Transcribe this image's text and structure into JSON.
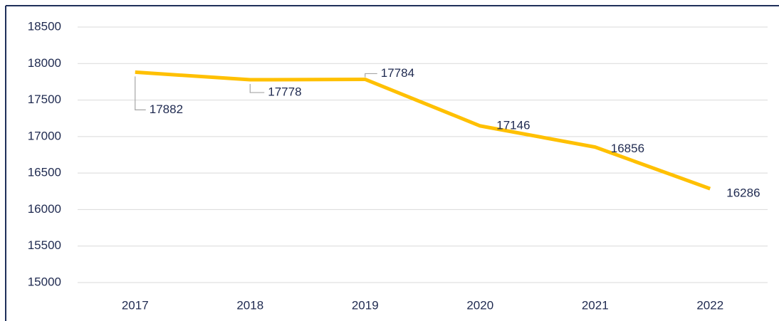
{
  "chart_data": {
    "type": "line",
    "categories": [
      "2017",
      "2018",
      "2019",
      "2020",
      "2021",
      "2022"
    ],
    "series": [
      {
        "color": "#ffc000",
        "values": [
          17882,
          17778,
          17784,
          17146,
          16856,
          16286
        ]
      }
    ],
    "ylim": [
      15000,
      18500
    ],
    "yticks": [
      15000,
      15500,
      16000,
      16500,
      17000,
      17500,
      18000,
      18500
    ],
    "grid": true
  }
}
